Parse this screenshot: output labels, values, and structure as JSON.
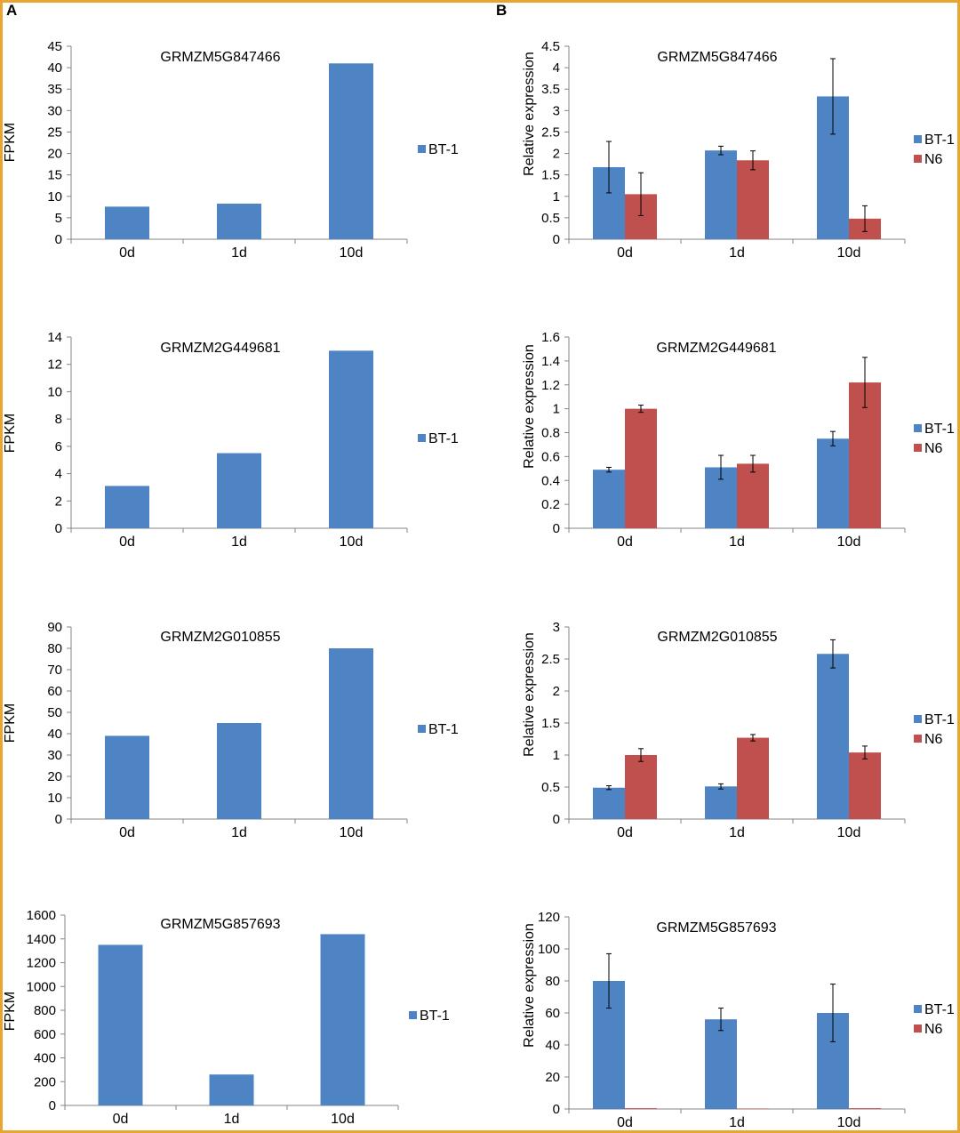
{
  "panel_labels": [
    "A",
    "B"
  ],
  "colors": {
    "blue": "#4F84C4",
    "red": "#C0504D",
    "frame": "#E8A631"
  },
  "chart_data": [
    {
      "type": "bar",
      "title": "GRMZM5G847466",
      "ylabel": "FPKM",
      "categories": [
        "0d",
        "1d",
        "10d"
      ],
      "series": [
        {
          "name": "BT-1",
          "values": [
            7.6,
            8.3,
            41
          ]
        }
      ],
      "ylim": [
        0,
        45
      ],
      "yticks": [
        0,
        5,
        10,
        15,
        20,
        25,
        30,
        35,
        40,
        45
      ],
      "legend": "right"
    },
    {
      "type": "bar",
      "title": "GRMZM5G847466",
      "ylabel": "Relative expression",
      "categories": [
        "0d",
        "1d",
        "10d"
      ],
      "series": [
        {
          "name": "BT-1",
          "values": [
            1.68,
            2.07,
            3.33
          ],
          "errors": [
            0.6,
            0.1,
            0.88
          ]
        },
        {
          "name": "N6",
          "values": [
            1.05,
            1.84,
            0.48
          ],
          "errors": [
            0.5,
            0.22,
            0.3
          ]
        }
      ],
      "ylim": [
        0,
        4.5
      ],
      "yticks": [
        "0",
        "0.5",
        "1",
        "1.5",
        "2",
        "2.5",
        "3",
        "3.5",
        "4",
        "4.5"
      ],
      "legend": "right"
    },
    {
      "type": "bar",
      "title": "GRMZM2G449681",
      "ylabel": "FPKM",
      "categories": [
        "0d",
        "1d",
        "10d"
      ],
      "series": [
        {
          "name": "BT-1",
          "values": [
            3.1,
            5.5,
            13
          ]
        }
      ],
      "ylim": [
        0,
        14
      ],
      "yticks": [
        0,
        2,
        4,
        6,
        8,
        10,
        12,
        14
      ],
      "legend": "right"
    },
    {
      "type": "bar",
      "title": "GRMZM2G449681",
      "ylabel": "Relative expression",
      "categories": [
        "0d",
        "1d",
        "10d"
      ],
      "series": [
        {
          "name": "BT-1",
          "values": [
            0.49,
            0.51,
            0.75
          ],
          "errors": [
            0.02,
            0.1,
            0.06
          ]
        },
        {
          "name": "N6",
          "values": [
            1.0,
            0.54,
            1.22
          ],
          "errors": [
            0.03,
            0.07,
            0.21
          ]
        }
      ],
      "ylim": [
        0,
        1.6
      ],
      "yticks": [
        "0",
        "0.2",
        "0.4",
        "0.6",
        "0.8",
        "1",
        "1.2",
        "1.4",
        "1.6"
      ],
      "legend": "right"
    },
    {
      "type": "bar",
      "title": "GRMZM2G010855",
      "ylabel": "FPKM",
      "categories": [
        "0d",
        "1d",
        "10d"
      ],
      "series": [
        {
          "name": "BT-1",
          "values": [
            39,
            45,
            80
          ]
        }
      ],
      "ylim": [
        0,
        90
      ],
      "yticks": [
        0,
        10,
        20,
        30,
        40,
        50,
        60,
        70,
        80,
        90
      ],
      "legend": "right"
    },
    {
      "type": "bar",
      "title": "GRMZM2G010855",
      "ylabel": "Relative expression",
      "categories": [
        "0d",
        "1d",
        "10d"
      ],
      "series": [
        {
          "name": "BT-1",
          "values": [
            0.49,
            0.51,
            2.58
          ],
          "errors": [
            0.03,
            0.04,
            0.22
          ]
        },
        {
          "name": "N6",
          "values": [
            1.0,
            1.27,
            1.04
          ],
          "errors": [
            0.1,
            0.05,
            0.1
          ]
        }
      ],
      "ylim": [
        0,
        3
      ],
      "yticks": [
        "0",
        "0.5",
        "1",
        "1.5",
        "2",
        "2.5",
        "3"
      ],
      "legend": "right"
    },
    {
      "type": "bar",
      "title": "GRMZM5G857693",
      "ylabel": "FPKM",
      "categories": [
        "0d",
        "1d",
        "10d"
      ],
      "series": [
        {
          "name": "BT-1",
          "values": [
            1350,
            260,
            1440
          ]
        }
      ],
      "ylim": [
        0,
        1600
      ],
      "yticks": [
        0,
        200,
        400,
        600,
        800,
        1000,
        1200,
        1400,
        1600
      ],
      "legend": "right"
    },
    {
      "type": "bar",
      "title": "GRMZM5G857693",
      "ylabel": "Relative expression",
      "categories": [
        "0d",
        "1d",
        "10d"
      ],
      "series": [
        {
          "name": "BT-1",
          "values": [
            80,
            56,
            60
          ],
          "errors": [
            17,
            7,
            18
          ]
        },
        {
          "name": "N6",
          "values": [
            0.5,
            0.3,
            0.5
          ],
          "errors": [
            0,
            0,
            0
          ]
        }
      ],
      "ylim": [
        0,
        120
      ],
      "yticks": [
        "0",
        "20",
        "40",
        "60",
        "80",
        "100",
        "120"
      ],
      "legend": "right"
    }
  ]
}
